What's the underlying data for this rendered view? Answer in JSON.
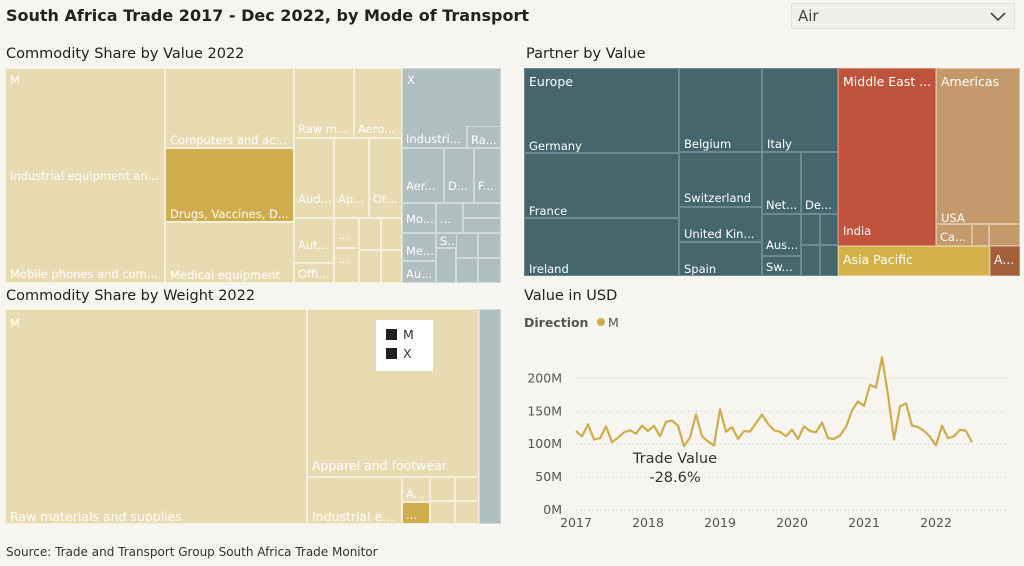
{
  "header": {
    "title": "South Africa Trade 2017 - Dec 2022, by Mode of Transport"
  },
  "mode_select": {
    "selected": "Air"
  },
  "value_treemap": {
    "title": "Commodity Share by Value 2022",
    "tiles": {
      "m": "M",
      "x": "X",
      "industrial": "Industrial equipment an...",
      "mobile": "Mobile phones and com...",
      "computers": "Computers and acc...",
      "drugs": "Drugs, Vaccines, D...",
      "medical": "Medical equipment",
      "raw": "Raw m...",
      "aero": "Aero...",
      "aud": "Aud...",
      "ap": "Ap...",
      "ot": "Ot...",
      "aut": "Aut...",
      "offi": "Offi...",
      "dots1": "...",
      "dots2": "...",
      "x_industri": "Industri...",
      "x_ra": "Ra...",
      "x_aer": "Aer...",
      "x_d": "D...",
      "x_f": "F...",
      "x_mo": "Mo...",
      "x_dots": "...",
      "x_s": "S...",
      "x_me": "Me...",
      "x_au": "Au..."
    }
  },
  "partner_treemap": {
    "title": "Partner by Value",
    "tiles": {
      "europe": "Europe",
      "germany": "Germany",
      "france": "France",
      "ireland": "Ireland",
      "belgium": "Belgium",
      "switzerland": "Switzerland",
      "uk": "United Kin...",
      "spain": "Spain",
      "italy": "Italy",
      "net": "Net...",
      "de": "De...",
      "aus": "Aus...",
      "sw": "Sw...",
      "middle_east": "Middle East ...",
      "india": "India",
      "americas": "Americas",
      "usa": "USA",
      "ca": "Ca...",
      "asia": "Asia Pacific",
      "a": "A..."
    }
  },
  "weight_treemap": {
    "title": "Commodity Share by Weight 2022",
    "tiles": {
      "m": "M",
      "raw": "Raw materials and supplies",
      "apparel": "Apparel and footwear",
      "industrial": "Industrial e...",
      "a": "A...",
      "dots": "..."
    },
    "legend": [
      "M",
      "X"
    ]
  },
  "value_chart": {
    "title": "Value in USD",
    "legend_label": "Direction",
    "series_label": "M",
    "annotation_title": "Trade Value",
    "annotation_value": "-28.6%"
  },
  "chart_data": {
    "type": "line",
    "title": "Value in USD",
    "legend": {
      "title": "Direction",
      "entries": [
        "M"
      ]
    },
    "xlabel": "",
    "ylabel": "",
    "x_ticks": [
      "2017",
      "2018",
      "2019",
      "2020",
      "2021",
      "2022"
    ],
    "y_ticks": [
      "0M",
      "50M",
      "100M",
      "150M",
      "200M"
    ],
    "ylim": [
      0,
      240
    ],
    "x_start": 2017.0,
    "x_step_months": 1,
    "color": "#cfad4c",
    "series": [
      {
        "name": "M",
        "values": [
          120,
          112,
          130,
          107,
          109,
          127,
          103,
          110,
          118,
          121,
          116,
          128,
          120,
          128,
          112,
          134,
          136,
          128,
          97,
          110,
          145,
          112,
          104,
          98,
          153,
          119,
          126,
          108,
          120,
          119,
          132,
          145,
          131,
          121,
          119,
          112,
          122,
          108,
          127,
          120,
          118,
          133,
          109,
          108,
          113,
          126,
          151,
          165,
          158,
          190,
          186,
          232,
          175,
          107,
          157,
          162,
          128,
          126,
          120,
          111,
          98,
          128,
          109,
          112,
          122,
          120,
          103
        ]
      }
    ]
  },
  "footer": {
    "source": "Source: Trade and Transport Group South Africa Trade Monitor"
  },
  "colors": {
    "cream": "#e8dbb2",
    "gold": "#cfad4c",
    "slate": "#b0bec0",
    "teal": "#46666e",
    "red": "#c0533c",
    "tan": "#c49a6c",
    "asia": "#d4b24a",
    "brown": "#a35e3c"
  }
}
